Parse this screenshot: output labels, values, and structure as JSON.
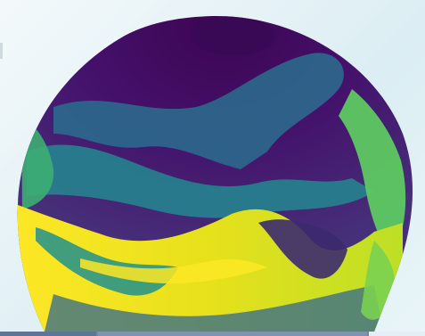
{
  "scene": {
    "subject": "globe-flow-visualization",
    "colormap": [
      "#440154",
      "#3b528b",
      "#21918c",
      "#5ec962",
      "#fde725"
    ],
    "background_colors": [
      "#f3f9fb",
      "#dbeef3"
    ],
    "bar_colors": [
      "#5d7698",
      "#7f94b0",
      "#e4eef4"
    ]
  }
}
